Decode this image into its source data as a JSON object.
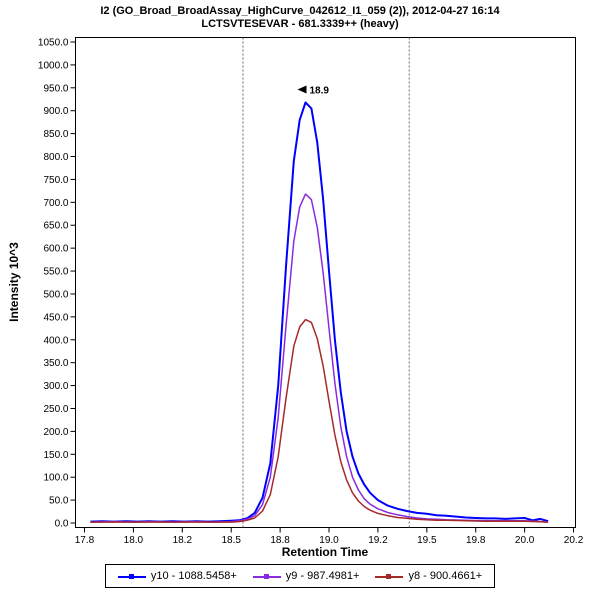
{
  "header": {
    "title_line1": "I2 (GO_Broad_BroadAssay_HighCurve_042612_I1_059 (2)), 2012-04-27 16:14",
    "title_line2": "LCTSVTESEVAR - 681.3339++ (heavy)"
  },
  "chart_data": {
    "type": "line",
    "title": "I2 (GO_Broad_BroadAssay_HighCurve_042612_I1_059 (2)), 2012-04-27 16:14",
    "subtitle": "LCTSVTESEVAR - 681.3339++ (heavy)",
    "xlabel": "Retention Time",
    "ylabel": "Intensity 10^3",
    "xlim": [
      17.704,
      20.26
    ],
    "ylim": [
      0,
      1050
    ],
    "grid": false,
    "legend_position": "bottom",
    "x_ticks": [
      {
        "v": 17.75,
        "label": "17.8"
      },
      {
        "v": 18.0,
        "label": "18.0"
      },
      {
        "v": 18.25,
        "label": "18.2"
      },
      {
        "v": 18.5,
        "label": "18.5"
      },
      {
        "v": 18.75,
        "label": "18.8"
      },
      {
        "v": 19.0,
        "label": "19.0"
      },
      {
        "v": 19.25,
        "label": "19.2"
      },
      {
        "v": 19.5,
        "label": "19.5"
      },
      {
        "v": 19.75,
        "label": "19.8"
      },
      {
        "v": 20.0,
        "label": "20.0"
      },
      {
        "v": 20.25,
        "label": "20.2"
      }
    ],
    "y_ticks": [
      {
        "v": 0,
        "label": "0.0"
      },
      {
        "v": 50,
        "label": "50.0"
      },
      {
        "v": 100,
        "label": "100.0"
      },
      {
        "v": 150,
        "label": "150.0"
      },
      {
        "v": 200,
        "label": "200.0"
      },
      {
        "v": 250,
        "label": "250.0"
      },
      {
        "v": 300,
        "label": "300.0"
      },
      {
        "v": 350,
        "label": "350.0"
      },
      {
        "v": 400,
        "label": "400.0"
      },
      {
        "v": 450,
        "label": "450.0"
      },
      {
        "v": 500,
        "label": "500.0"
      },
      {
        "v": 550,
        "label": "550.0"
      },
      {
        "v": 600,
        "label": "600.0"
      },
      {
        "v": 650,
        "label": "650.0"
      },
      {
        "v": 700,
        "label": "700.0"
      },
      {
        "v": 750,
        "label": "750.0"
      },
      {
        "v": 800,
        "label": "800.0"
      },
      {
        "v": 850,
        "label": "850.0"
      },
      {
        "v": 900,
        "label": "900.0"
      },
      {
        "v": 950,
        "label": "950.0"
      },
      {
        "v": 1000,
        "label": "1000.0"
      },
      {
        "v": 1050,
        "label": "1050.0"
      }
    ],
    "peak_boundaries": [
      18.56,
      19.41
    ],
    "boundary_color": "#666666",
    "annotation": {
      "x": 18.89,
      "y": 920,
      "label": "18.9",
      "color": "#00008b",
      "flag_color": "#000000"
    },
    "series": [
      {
        "name": "y10 - 1088.5458+",
        "color": "#0000ff",
        "width": 2,
        "points": [
          [
            17.78,
            3
          ],
          [
            17.84,
            4
          ],
          [
            17.9,
            3
          ],
          [
            17.96,
            4
          ],
          [
            18.02,
            3
          ],
          [
            18.08,
            4
          ],
          [
            18.14,
            3
          ],
          [
            18.2,
            4
          ],
          [
            18.26,
            3
          ],
          [
            18.32,
            4
          ],
          [
            18.38,
            3
          ],
          [
            18.44,
            4
          ],
          [
            18.5,
            5
          ],
          [
            18.54,
            6
          ],
          [
            18.58,
            10
          ],
          [
            18.62,
            22
          ],
          [
            18.66,
            55
          ],
          [
            18.7,
            130
          ],
          [
            18.74,
            300
          ],
          [
            18.78,
            560
          ],
          [
            18.82,
            790
          ],
          [
            18.85,
            880
          ],
          [
            18.88,
            918
          ],
          [
            18.91,
            905
          ],
          [
            18.94,
            830
          ],
          [
            18.97,
            705
          ],
          [
            19.0,
            550
          ],
          [
            19.03,
            400
          ],
          [
            19.06,
            285
          ],
          [
            19.09,
            200
          ],
          [
            19.12,
            145
          ],
          [
            19.15,
            108
          ],
          [
            19.18,
            84
          ],
          [
            19.21,
            66
          ],
          [
            19.25,
            50
          ],
          [
            19.3,
            38
          ],
          [
            19.35,
            31
          ],
          [
            19.4,
            26
          ],
          [
            19.45,
            22
          ],
          [
            19.5,
            20
          ],
          [
            19.55,
            17
          ],
          [
            19.6,
            16
          ],
          [
            19.65,
            14
          ],
          [
            19.7,
            12
          ],
          [
            19.75,
            11
          ],
          [
            19.8,
            10
          ],
          [
            19.85,
            10
          ],
          [
            19.9,
            9
          ],
          [
            19.95,
            10
          ],
          [
            20.0,
            11
          ],
          [
            20.04,
            6
          ],
          [
            20.08,
            9
          ],
          [
            20.12,
            4
          ]
        ]
      },
      {
        "name": "y9 - 987.4981+",
        "color": "#8a2be2",
        "width": 1.5,
        "points": [
          [
            17.78,
            2
          ],
          [
            17.9,
            3
          ],
          [
            18.0,
            2
          ],
          [
            18.1,
            3
          ],
          [
            18.2,
            2
          ],
          [
            18.3,
            3
          ],
          [
            18.4,
            2
          ],
          [
            18.5,
            3
          ],
          [
            18.54,
            5
          ],
          [
            18.58,
            8
          ],
          [
            18.62,
            16
          ],
          [
            18.66,
            40
          ],
          [
            18.7,
            100
          ],
          [
            18.74,
            230
          ],
          [
            18.78,
            430
          ],
          [
            18.82,
            615
          ],
          [
            18.85,
            690
          ],
          [
            18.88,
            718
          ],
          [
            18.91,
            706
          ],
          [
            18.94,
            645
          ],
          [
            18.97,
            545
          ],
          [
            19.0,
            425
          ],
          [
            19.03,
            305
          ],
          [
            19.06,
            210
          ],
          [
            19.09,
            145
          ],
          [
            19.12,
            100
          ],
          [
            19.15,
            72
          ],
          [
            19.18,
            53
          ],
          [
            19.21,
            41
          ],
          [
            19.25,
            31
          ],
          [
            19.3,
            23
          ],
          [
            19.35,
            18
          ],
          [
            19.4,
            14
          ],
          [
            19.45,
            11
          ],
          [
            19.5,
            9
          ],
          [
            19.55,
            8
          ],
          [
            19.6,
            7
          ],
          [
            19.7,
            6
          ],
          [
            19.8,
            5
          ],
          [
            19.9,
            5
          ],
          [
            20.0,
            5
          ],
          [
            20.06,
            4
          ],
          [
            20.12,
            2
          ]
        ]
      },
      {
        "name": "y8 - 900.4661+",
        "color": "#a52a2a",
        "width": 1.5,
        "points": [
          [
            17.78,
            2
          ],
          [
            17.9,
            2
          ],
          [
            18.0,
            2
          ],
          [
            18.1,
            2
          ],
          [
            18.2,
            2
          ],
          [
            18.3,
            2
          ],
          [
            18.4,
            2
          ],
          [
            18.5,
            2
          ],
          [
            18.54,
            3
          ],
          [
            18.58,
            6
          ],
          [
            18.62,
            11
          ],
          [
            18.66,
            26
          ],
          [
            18.7,
            62
          ],
          [
            18.74,
            145
          ],
          [
            18.78,
            272
          ],
          [
            18.82,
            386
          ],
          [
            18.85,
            428
          ],
          [
            18.88,
            444
          ],
          [
            18.91,
            438
          ],
          [
            18.94,
            402
          ],
          [
            18.97,
            342
          ],
          [
            19.0,
            266
          ],
          [
            19.03,
            192
          ],
          [
            19.06,
            134
          ],
          [
            19.09,
            94
          ],
          [
            19.12,
            66
          ],
          [
            19.15,
            48
          ],
          [
            19.18,
            36
          ],
          [
            19.21,
            28
          ],
          [
            19.25,
            21
          ],
          [
            19.3,
            16
          ],
          [
            19.35,
            12
          ],
          [
            19.4,
            10
          ],
          [
            19.45,
            8
          ],
          [
            19.5,
            7
          ],
          [
            19.55,
            6
          ],
          [
            19.6,
            6
          ],
          [
            19.7,
            5
          ],
          [
            19.8,
            4
          ],
          [
            19.9,
            4
          ],
          [
            20.0,
            4
          ],
          [
            20.06,
            3
          ],
          [
            20.12,
            2
          ]
        ]
      }
    ]
  },
  "legend": {
    "items": [
      {
        "label": "y10 - 1088.5458+",
        "color": "#0000ff"
      },
      {
        "label": "y9 - 987.4981+",
        "color": "#8a2be2"
      },
      {
        "label": "y8 - 900.4661+",
        "color": "#a52a2a"
      }
    ]
  }
}
